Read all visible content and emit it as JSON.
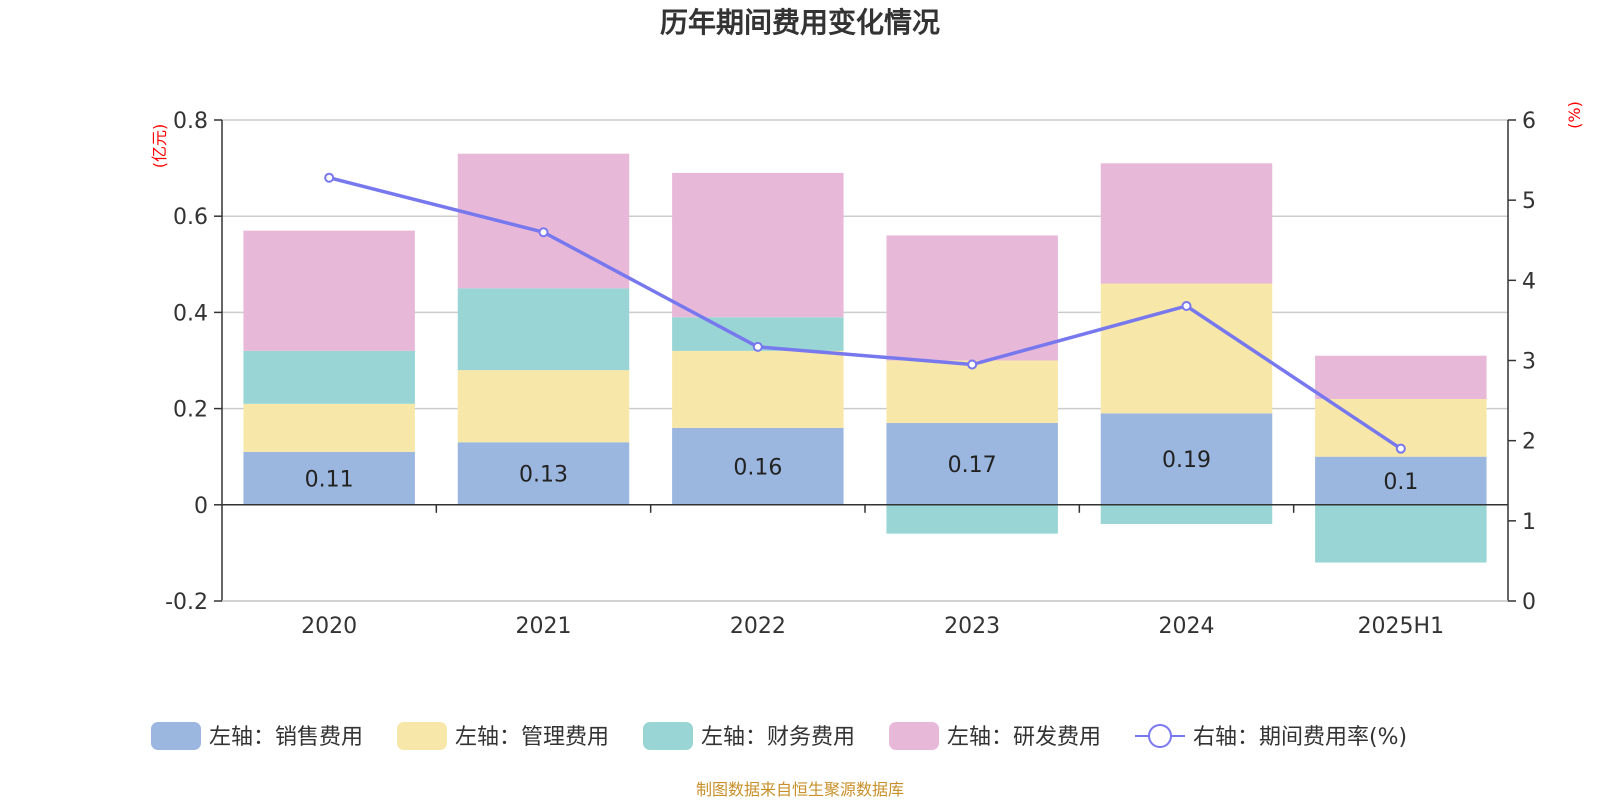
{
  "chart_data": {
    "type": "bar",
    "title": "历年期间费用变化情况",
    "categories": [
      "2020",
      "2021",
      "2022",
      "2023",
      "2024",
      "2025H1"
    ],
    "left_axis": {
      "unit": "(亿元)",
      "ylim": [
        -0.2,
        0.8
      ],
      "ticks": [
        -0.2,
        0,
        0.2,
        0.4,
        0.6,
        0.8
      ],
      "tick_labels": [
        "-0.2",
        "0",
        "0.2",
        "0.4",
        "0.6",
        "0.8"
      ]
    },
    "right_axis": {
      "unit": "(%)",
      "ylim": [
        0,
        6
      ],
      "ticks": [
        0,
        1,
        2,
        3,
        4,
        5,
        6
      ],
      "tick_labels": [
        "0",
        "1",
        "2",
        "3",
        "4",
        "5",
        "6"
      ]
    },
    "series": [
      {
        "name": "左轴：销售费用",
        "kind": "bar",
        "axis": "left",
        "color": "#9bb7e0",
        "values": [
          0.11,
          0.13,
          0.16,
          0.17,
          0.19,
          0.1
        ],
        "labels": [
          "0.11",
          "0.13",
          "0.16",
          "0.17",
          "0.19",
          "0.1"
        ]
      },
      {
        "name": "左轴：管理费用",
        "kind": "bar",
        "axis": "left",
        "color": "#f7e7a8",
        "values": [
          0.1,
          0.15,
          0.16,
          0.13,
          0.27,
          0.12
        ]
      },
      {
        "name": "左轴：财务费用",
        "kind": "bar",
        "axis": "left",
        "color": "#98d5d4",
        "values": [
          0.11,
          0.17,
          0.07,
          -0.06,
          -0.04,
          -0.12
        ]
      },
      {
        "name": "左轴：研发费用",
        "kind": "bar",
        "axis": "left",
        "color": "#e8b8d9",
        "values": [
          0.25,
          0.28,
          0.3,
          0.26,
          0.25,
          0.09
        ]
      },
      {
        "name": "右轴：期间费用率(%)",
        "kind": "line",
        "axis": "right",
        "color": "#7878ee",
        "values": [
          5.28,
          4.6,
          3.17,
          2.95,
          3.68,
          1.9
        ]
      }
    ],
    "grid": true,
    "legend_position": "bottom"
  },
  "source_text": "制图数据来自恒生聚源数据库"
}
